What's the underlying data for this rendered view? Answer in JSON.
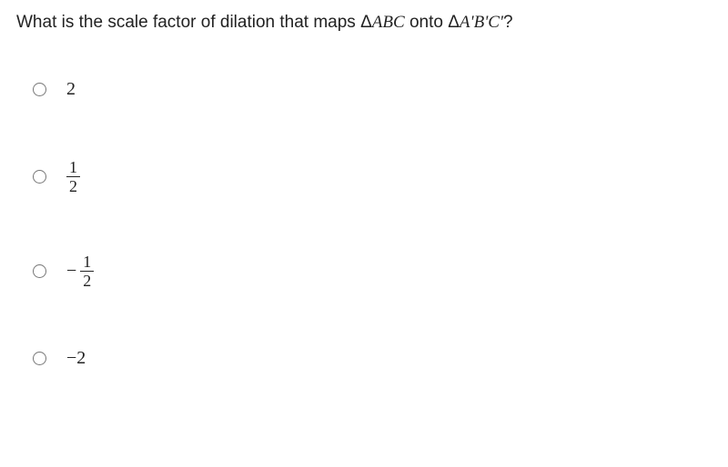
{
  "question": {
    "prefix": "What is the scale factor of dilation that maps ",
    "triangle1_delta": "Δ",
    "triangle1_label": "ABC",
    "middle": " onto ",
    "triangle2_delta": "Δ",
    "triangle2_label": "A'B'C'",
    "suffix": "?"
  },
  "options": [
    {
      "type": "plain",
      "value": "2"
    },
    {
      "type": "fraction",
      "negative": false,
      "numerator": "1",
      "denominator": "2"
    },
    {
      "type": "fraction",
      "negative": true,
      "neg_sign": "−",
      "numerator": "1",
      "denominator": "2"
    },
    {
      "type": "plain",
      "value": "−2"
    }
  ],
  "styling": {
    "background_color": "#ffffff",
    "text_color": "#222222",
    "radio_border_color": "#777777",
    "question_fontsize": 19,
    "option_fontsize": 20,
    "fraction_fontsize": 18
  }
}
